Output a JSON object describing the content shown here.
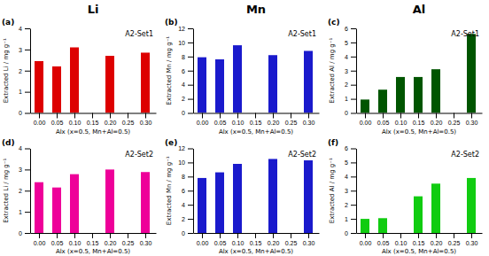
{
  "chart_data": [
    {
      "type": "bar",
      "title": "Li",
      "annotations": [
        "A2-Set1",
        "(a)"
      ],
      "x": [
        0.0,
        0.05,
        0.1,
        0.2,
        0.3
      ],
      "values": [
        2.45,
        2.2,
        3.1,
        2.7,
        2.85
      ],
      "color": "#dd0000",
      "xlabel": "Alx (x=0.5, Mn+Al=0.5)",
      "ylabel": "Extracted Li / mg g⁻¹",
      "xlim": [
        -0.025,
        0.33
      ],
      "xticks": [
        {
          "value": 0,
          "label": "0.00"
        },
        0.05,
        {
          "value": 0.1,
          "label": "0.10"
        },
        0.15,
        {
          "value": 0.2,
          "label": "0.20"
        },
        0.25,
        {
          "value": 0.3,
          "label": "0.30"
        }
      ],
      "ylim": [
        0,
        4
      ],
      "yticks": [
        0,
        1,
        2,
        3,
        4
      ],
      "grid": false
    },
    {
      "type": "bar",
      "title": "Mn",
      "annotations": [
        "A2-Set1",
        "(b)"
      ],
      "x": [
        0.0,
        0.05,
        0.1,
        0.2,
        0.3
      ],
      "values": [
        7.9,
        7.6,
        9.6,
        8.2,
        8.8
      ],
      "color": "#1a1acc",
      "xlabel": "Alx (x=0.5, Mn+Al=0.5)",
      "ylabel": "Extracted Mn / mg g⁻¹",
      "xlim": [
        -0.025,
        0.33
      ],
      "xticks": [
        {
          "value": 0,
          "label": "0.00"
        },
        0.05,
        {
          "value": 0.1,
          "label": "0.10"
        },
        0.15,
        {
          "value": 0.2,
          "label": "0.20"
        },
        0.25,
        {
          "value": 0.3,
          "label": "0.30"
        }
      ],
      "ylim": [
        0,
        12
      ],
      "yticks": [
        0,
        2,
        4,
        6,
        8,
        10,
        12
      ],
      "grid": false
    },
    {
      "type": "bar",
      "title": "Al",
      "annotations": [
        "A2-Set1",
        "(c)"
      ],
      "x": [
        0.0,
        0.05,
        0.1,
        0.15,
        0.2,
        0.3
      ],
      "values": [
        0.95,
        1.65,
        2.55,
        2.55,
        3.1,
        5.6
      ],
      "color": "#005500",
      "xlabel": "Alx (x=0.5, Mn+Al=0.5)",
      "ylabel": "Extracted Al / mg g⁻¹",
      "xlim": [
        -0.025,
        0.33
      ],
      "xticks": [
        {
          "value": 0,
          "label": "0.00"
        },
        0.05,
        {
          "value": 0.1,
          "label": "0.10"
        },
        0.15,
        {
          "value": 0.2,
          "label": "0.20"
        },
        0.25,
        {
          "value": 0.3,
          "label": "0.30"
        }
      ],
      "ylim": [
        0,
        6
      ],
      "yticks": [
        0,
        1,
        2,
        3,
        4,
        5,
        6
      ],
      "grid": false
    },
    {
      "type": "bar",
      "annotations": [
        "A2-Set2",
        "(d)"
      ],
      "x": [
        0.0,
        0.05,
        0.1,
        0.2,
        0.3
      ],
      "values": [
        2.4,
        2.15,
        2.78,
        3.0,
        2.88
      ],
      "color": "#ee0099",
      "xlabel": "Alx (x=0.5, Mn+Al=0.5)",
      "ylabel": "Extracted Li / mg g⁻¹",
      "xlim": [
        -0.025,
        0.33
      ],
      "xticks": [
        {
          "value": 0,
          "label": "0.00"
        },
        0.05,
        {
          "value": 0.1,
          "label": "0.10"
        },
        0.15,
        {
          "value": 0.2,
          "label": "0.20"
        },
        0.25,
        {
          "value": 0.3,
          "label": "0.30"
        }
      ],
      "ylim": [
        0,
        4
      ],
      "yticks": [
        0,
        1,
        2,
        3,
        4
      ],
      "grid": false
    },
    {
      "type": "bar",
      "annotations": [
        "A2-Set2",
        "(e)"
      ],
      "x": [
        0.0,
        0.05,
        0.1,
        0.2,
        0.3
      ],
      "values": [
        7.8,
        8.6,
        9.8,
        10.5,
        10.3
      ],
      "color": "#1a1acc",
      "xlabel": "Alx (x=0.5, Mn+Al=0.5)",
      "ylabel": "Extracted Mn / mg g⁻¹",
      "xlim": [
        -0.025,
        0.33
      ],
      "xticks": [
        {
          "value": 0,
          "label": "0.00"
        },
        0.05,
        {
          "value": 0.1,
          "label": "0.10"
        },
        0.15,
        {
          "value": 0.2,
          "label": "0.20"
        },
        0.25,
        {
          "value": 0.3,
          "label": "0.30"
        }
      ],
      "ylim": [
        0,
        12
      ],
      "yticks": [
        0,
        2,
        4,
        6,
        8,
        10,
        12
      ],
      "grid": false
    },
    {
      "type": "bar",
      "annotations": [
        "A2-Set2",
        "(f)"
      ],
      "x": [
        0.0,
        0.05,
        0.15,
        0.2,
        0.3
      ],
      "values": [
        1.0,
        1.05,
        2.6,
        3.5,
        3.9
      ],
      "color": "#11cc11",
      "xlabel": "Alx (x=0.5, Mn+Al=0.5)",
      "ylabel": "Extracted Al / mg g⁻¹",
      "xlim": [
        -0.025,
        0.33
      ],
      "xticks": [
        {
          "value": 0,
          "label": "0.00"
        },
        0.05,
        {
          "value": 0.1,
          "label": "0.10"
        },
        0.15,
        {
          "value": 0.2,
          "label": "0.20"
        },
        0.25,
        {
          "value": 0.3,
          "label": "0.30"
        }
      ],
      "ylim": [
        0,
        6
      ],
      "yticks": [
        0,
        1,
        2,
        3,
        4,
        5,
        6
      ],
      "grid": false
    }
  ]
}
